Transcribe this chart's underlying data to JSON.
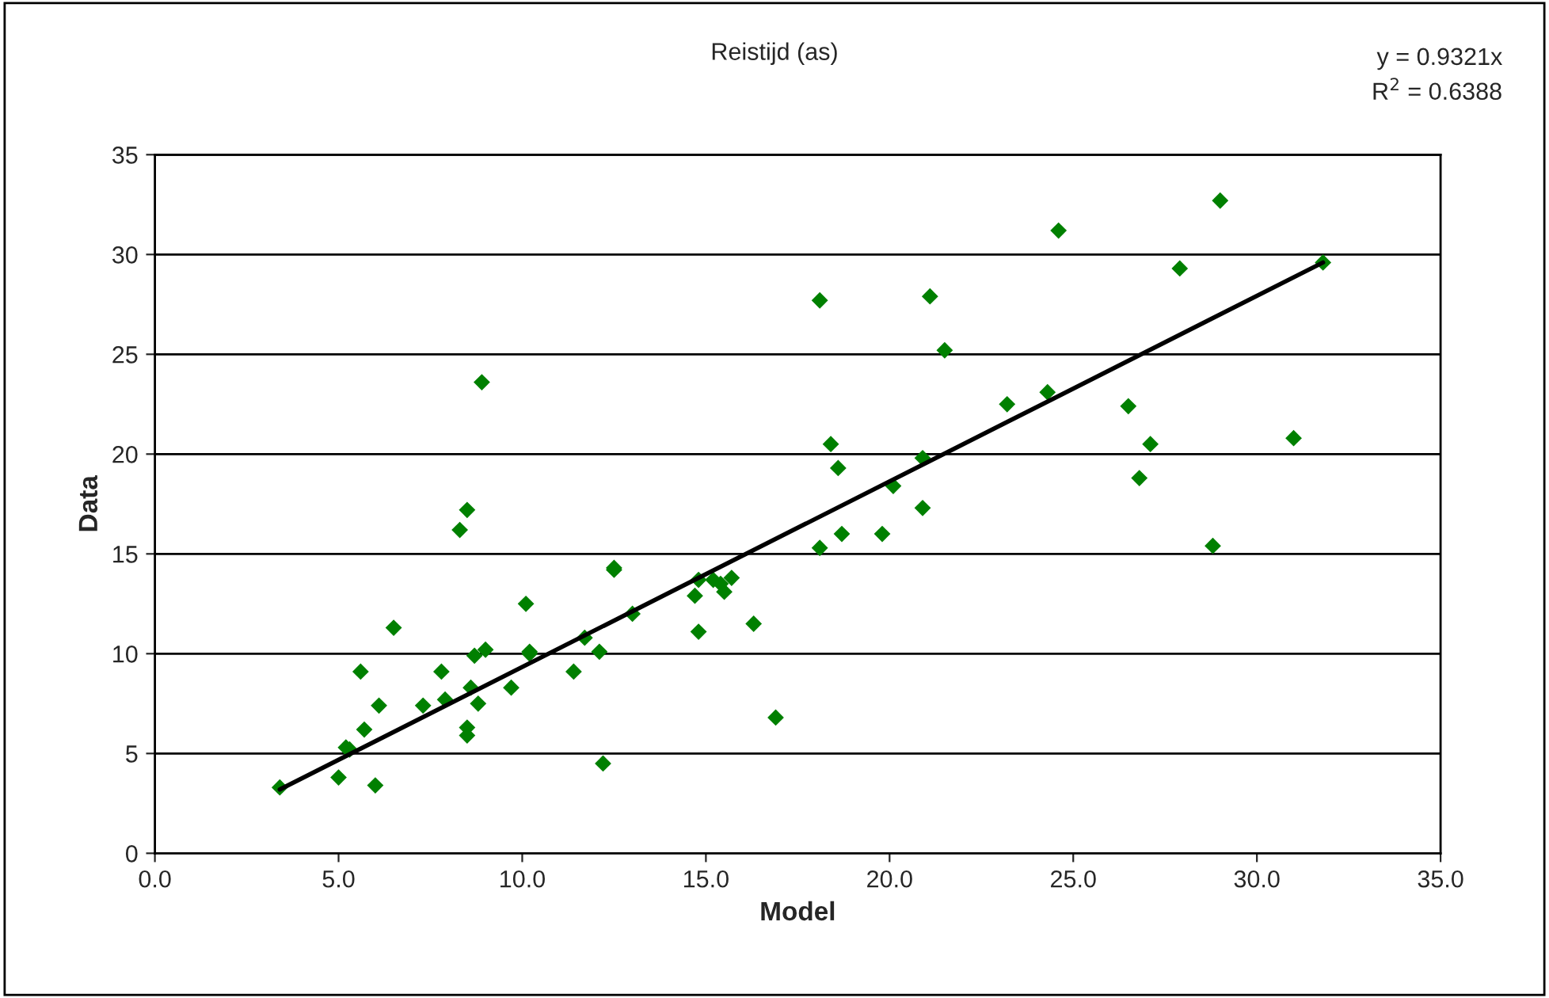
{
  "chart_data": {
    "type": "scatter",
    "title": "Reistijd (as)",
    "xlabel": "Model",
    "ylabel": "Data",
    "annotations": [
      "y = 0.9321x",
      "R$^{2}$ = 0.6388"
    ],
    "series": [
      {
        "color": "#008000",
        "marker": "diamond",
        "x": [
          3.4,
          5.0,
          5.2,
          5.3,
          5.6,
          5.7,
          6.0,
          6.1,
          6.5,
          7.3,
          7.8,
          7.9,
          8.3,
          8.5,
          8.5,
          8.5,
          8.6,
          8.7,
          8.8,
          8.9,
          9.0,
          9.7,
          10.1,
          10.2,
          10.2,
          11.4,
          11.7,
          12.1,
          12.2,
          12.5,
          12.5,
          13.0,
          14.7,
          14.8,
          14.8,
          15.2,
          15.4,
          15.5,
          15.7,
          16.3,
          16.9,
          18.1,
          18.1,
          18.4,
          18.6,
          18.7,
          19.8,
          20.1,
          20.9,
          20.9,
          21.1,
          21.5,
          23.2,
          24.3,
          24.6,
          26.5,
          26.8,
          27.1,
          27.9,
          28.8,
          29.0,
          31.0,
          31.8
        ],
        "values": [
          3.3,
          3.8,
          5.3,
          5.2,
          9.1,
          6.2,
          3.4,
          7.4,
          11.3,
          7.4,
          9.1,
          7.7,
          16.2,
          17.2,
          6.3,
          5.9,
          8.3,
          9.9,
          7.5,
          23.6,
          10.2,
          8.3,
          12.5,
          10.0,
          10.1,
          9.1,
          10.8,
          10.1,
          4.5,
          14.3,
          14.2,
          12.0,
          12.9,
          11.1,
          13.7,
          13.7,
          13.5,
          13.1,
          13.8,
          11.5,
          6.8,
          27.7,
          15.3,
          20.5,
          19.3,
          16.0,
          16.0,
          18.4,
          17.3,
          19.8,
          27.9,
          25.2,
          22.5,
          23.1,
          31.2,
          22.4,
          18.8,
          20.5,
          29.3,
          15.4,
          32.7,
          20.8,
          29.6
        ]
      },
      {
        "type": "line",
        "color": "#000000",
        "marker": "none",
        "line_style": "solid",
        "x": [
          3.4,
          31.8
        ],
        "values": [
          3.2,
          29.6
        ]
      }
    ],
    "xlim": [
      0,
      35
    ],
    "xticks": [
      {
        "value": 0,
        "label": "0.0"
      },
      {
        "value": 5,
        "label": "5.0"
      },
      {
        "value": 10,
        "label": "10.0"
      },
      {
        "value": 15,
        "label": "15.0"
      },
      {
        "value": 20,
        "label": "20.0"
      },
      {
        "value": 25,
        "label": "25.0"
      },
      {
        "value": 30,
        "label": "30.0"
      },
      {
        "value": 35,
        "label": "35.0"
      }
    ],
    "ylim": [
      0,
      35
    ],
    "yticks": [
      0,
      5,
      10,
      15,
      20,
      25,
      30,
      35
    ],
    "grid": "y",
    "legend": false
  }
}
